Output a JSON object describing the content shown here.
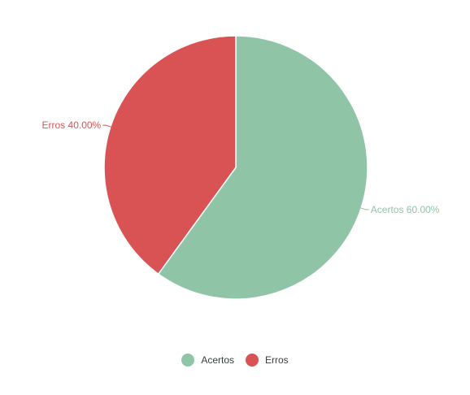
{
  "chart_data": {
    "type": "pie",
    "categories": [
      "Acertos",
      "Erros"
    ],
    "values": [
      60,
      40
    ],
    "data_labels": [
      "Acertos 60.00%",
      "Erros 40.00%"
    ],
    "colors": [
      "#8fc4a7",
      "#d95355"
    ],
    "start_angle_deg": 0,
    "direction": "clockwise",
    "legend_position": "bottom-center",
    "legend": {
      "items": [
        {
          "label": "Acertos",
          "color": "#8fc4a7"
        },
        {
          "label": "Erros",
          "color": "#d95355"
        }
      ]
    }
  }
}
